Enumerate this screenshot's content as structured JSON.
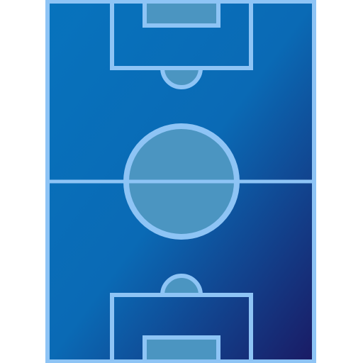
{
  "graphic": {
    "subject": "soccer-field-icon",
    "colors": {
      "field_gradient_start": "#0773bd",
      "field_gradient_mid": "#0a6ab5",
      "field_gradient_end": "#1a1a64",
      "line": "#8ec4f5",
      "fill_light": "#4b95c1"
    }
  }
}
